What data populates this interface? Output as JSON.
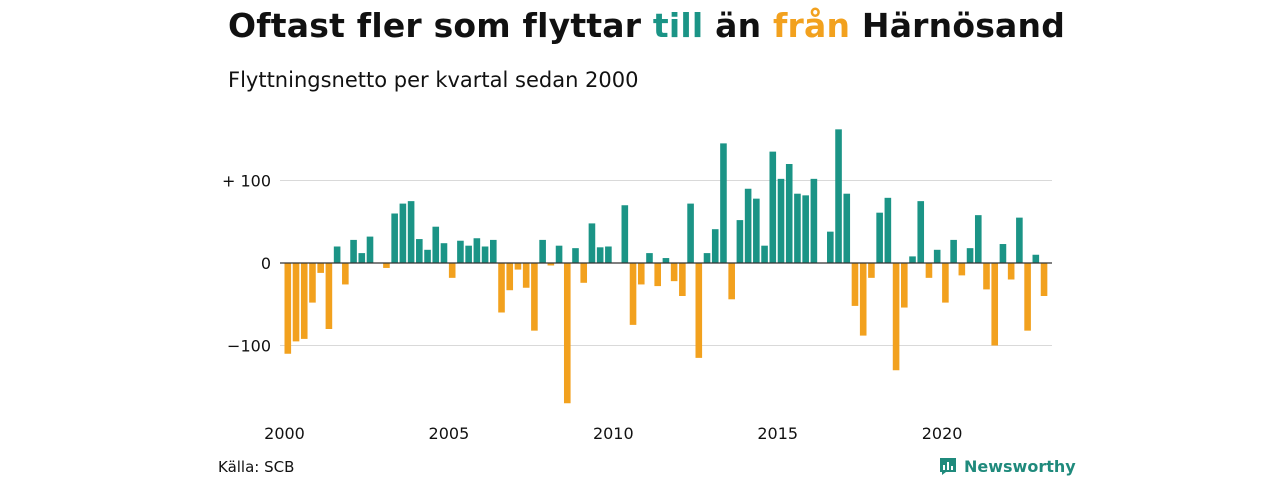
{
  "header": {
    "title_parts": [
      "Oftast fler som flyttar ",
      "till",
      " än ",
      "från",
      " Härnösand"
    ],
    "subtitle": "Flyttningsnetto per kvartal sedan 2000"
  },
  "footer": {
    "source": "Källa: SCB",
    "brand": "Newsworthy",
    "brand_icon": "newsworthy-logo-icon"
  },
  "colors": {
    "positive": "#1b9486",
    "negative": "#f2a11e",
    "brand": "#1f8a7c",
    "grid": "#d9d9d9",
    "zero_line": "#333333"
  },
  "chart_data": {
    "type": "bar",
    "title": "Oftast fler som flyttar till än från Härnösand",
    "subtitle": "Flyttningsnetto per kvartal sedan 2000",
    "x_start": "2000-Q1",
    "x_ticks": [
      "2000",
      "2005",
      "2010",
      "2015",
      "2020"
    ],
    "y_ticks": [
      {
        "value": 100,
        "label": "+ 100"
      },
      {
        "value": 0,
        "label": "0"
      },
      {
        "value": -100,
        "label": "−100"
      }
    ],
    "ylim": [
      -175,
      165
    ],
    "grid": true,
    "values": [
      -110,
      -95,
      -92,
      -48,
      -12,
      -80,
      20,
      -26,
      28,
      12,
      32,
      0,
      -6,
      60,
      72,
      75,
      29,
      16,
      44,
      24,
      -18,
      27,
      21,
      30,
      20,
      28,
      -60,
      -33,
      -8,
      -30,
      -82,
      28,
      -3,
      21,
      -170,
      18,
      -24,
      48,
      19,
      20,
      0,
      70,
      -75,
      -26,
      12,
      -28,
      6,
      -22,
      -40,
      72,
      -115,
      12,
      41,
      145,
      -44,
      52,
      90,
      78,
      21,
      135,
      102,
      120,
      84,
      82,
      102,
      0,
      38,
      162,
      84,
      -52,
      -88,
      -18,
      61,
      79,
      -130,
      -54,
      8,
      75,
      -18,
      16,
      -48,
      28,
      -15,
      18,
      58,
      -32,
      -100,
      23,
      -20,
      55,
      -82,
      10,
      -40
    ]
  }
}
